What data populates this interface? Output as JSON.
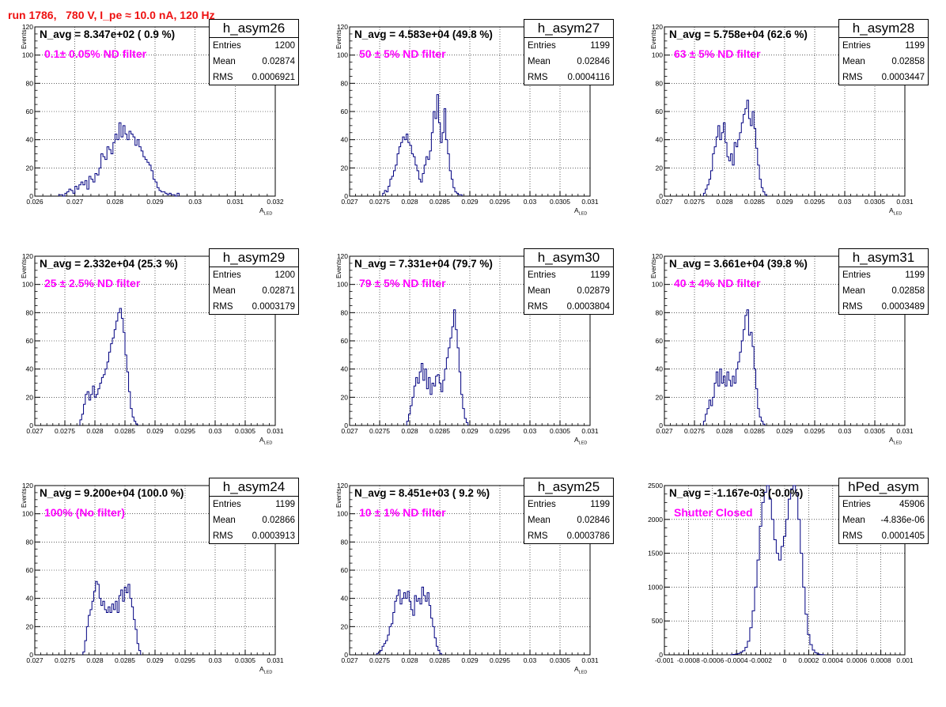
{
  "run_title": "run 1786,   780 V, I_pe ≈ 10.0 nA, 120 Hz",
  "colors": {
    "title": "#ee1111",
    "filter_label": "#ff00ff",
    "histogram_line": "#000080"
  },
  "chart_data": [
    {
      "type": "histogram",
      "hist_name": "h_asym26",
      "n_avg_label": "N_avg = 8.347e+02 ( 0.9 %)",
      "filter_label": "0.1± 0.05% ND filter",
      "stats": {
        "Entries": "1200",
        "Mean": "0.02874",
        "RMS": "0.0006921"
      },
      "xlabel": "A",
      "xlabel_sub": "LED",
      "ylabel": "Events",
      "xlim": [
        0.026,
        0.032
      ],
      "ylim": [
        0,
        120
      ],
      "xticks": [
        "0.026",
        "0.027",
        "0.028",
        "0.029",
        "0.03",
        "0.031",
        "0.032"
      ],
      "yticks": [
        "0",
        "20",
        "40",
        "60",
        "80",
        "100",
        "120"
      ],
      "grid": true,
      "bins_start": 0.0266,
      "bin_width": 5e-05,
      "values": [
        1,
        1,
        0,
        2,
        3,
        5,
        4,
        2,
        7,
        5,
        8,
        10,
        8,
        11,
        5,
        14,
        12,
        10,
        16,
        15,
        20,
        30,
        28,
        26,
        35,
        33,
        30,
        38,
        44,
        40,
        52,
        42,
        50,
        44,
        40,
        46,
        44,
        42,
        36,
        40,
        35,
        32,
        28,
        26,
        24,
        22,
        18,
        12,
        10,
        6,
        4,
        3,
        3,
        2,
        1,
        2,
        1,
        1,
        0,
        2
      ]
    },
    {
      "type": "histogram",
      "hist_name": "h_asym27",
      "n_avg_label": "N_avg = 4.583e+04 (49.8 %)",
      "filter_label": "50 ± 5% ND filter",
      "stats": {
        "Entries": "1199",
        "Mean": "0.02846",
        "RMS": "0.0004116"
      },
      "xlabel": "A",
      "xlabel_sub": "LED",
      "ylabel": "Events",
      "xlim": [
        0.027,
        0.031
      ],
      "ylim": [
        0,
        120
      ],
      "xticks": [
        "0.027",
        "0.0275",
        "0.028",
        "0.0285",
        "0.029",
        "0.0295",
        "0.03",
        "0.0305",
        "0.031"
      ],
      "yticks": [
        "0",
        "20",
        "40",
        "60",
        "80",
        "100",
        "120"
      ],
      "grid": true,
      "bins_start": 0.02755,
      "bin_width": 3e-05,
      "values": [
        2,
        4,
        3,
        7,
        12,
        14,
        18,
        22,
        30,
        35,
        38,
        42,
        40,
        44,
        38,
        36,
        30,
        28,
        22,
        18,
        12,
        10,
        16,
        22,
        28,
        26,
        32,
        45,
        60,
        55,
        72,
        52,
        38,
        45,
        62,
        40,
        30,
        18,
        12,
        6,
        3,
        2,
        1,
        1
      ]
    },
    {
      "type": "histogram",
      "hist_name": "h_asym28",
      "n_avg_label": "N_avg = 5.758e+04 (62.6 %)",
      "filter_label": "63 ± 5% ND filter",
      "stats": {
        "Entries": "1199",
        "Mean": "0.02858",
        "RMS": "0.0003447"
      },
      "xlabel": "A",
      "xlabel_sub": "LED",
      "ylabel": "Events",
      "xlim": [
        0.027,
        0.031
      ],
      "ylim": [
        0,
        120
      ],
      "xticks": [
        "0.027",
        "0.0275",
        "0.028",
        "0.0285",
        "0.029",
        "0.0295",
        "0.03",
        "0.0305",
        "0.031"
      ],
      "yticks": [
        "0",
        "20",
        "40",
        "60",
        "80",
        "100",
        "120"
      ],
      "grid": true,
      "bins_start": 0.02765,
      "bin_width": 3e-05,
      "values": [
        2,
        5,
        8,
        12,
        18,
        30,
        35,
        42,
        50,
        40,
        45,
        52,
        38,
        28,
        25,
        30,
        22,
        38,
        35,
        40,
        45,
        52,
        58,
        62,
        68,
        55,
        50,
        60,
        48,
        34,
        22,
        12,
        6,
        3,
        1
      ]
    },
    {
      "type": "histogram",
      "hist_name": "h_asym29",
      "n_avg_label": "N_avg = 2.332e+04 (25.3 %)",
      "filter_label": "25 ± 2.5% ND filter",
      "stats": {
        "Entries": "1200",
        "Mean": "0.02871",
        "RMS": "0.0003179"
      },
      "xlabel": "A",
      "xlabel_sub": "LED",
      "ylabel": "Events",
      "xlim": [
        0.027,
        0.031
      ],
      "ylim": [
        0,
        120
      ],
      "xticks": [
        "0.027",
        "0.0275",
        "0.028",
        "0.0285",
        "0.029",
        "0.0295",
        "0.03",
        "0.0305",
        "0.031"
      ],
      "yticks": [
        "0",
        "20",
        "40",
        "60",
        "80",
        "100",
        "120"
      ],
      "grid": true,
      "bins_start": 0.02775,
      "bin_width": 3e-05,
      "values": [
        4,
        8,
        15,
        22,
        24,
        18,
        22,
        28,
        20,
        22,
        26,
        30,
        34,
        36,
        40,
        45,
        52,
        58,
        62,
        68,
        74,
        80,
        83,
        76,
        66,
        50,
        38,
        24,
        12,
        6,
        3,
        1
      ]
    },
    {
      "type": "histogram",
      "hist_name": "h_asym30",
      "n_avg_label": "N_avg = 7.331e+04 (79.7 %)",
      "filter_label": "79 ± 5% ND filter",
      "stats": {
        "Entries": "1199",
        "Mean": "0.02879",
        "RMS": "0.0003804"
      },
      "xlabel": "A",
      "xlabel_sub": "LED",
      "ylabel": "Events",
      "xlim": [
        0.027,
        0.031
      ],
      "ylim": [
        0,
        120
      ],
      "xticks": [
        "0.027",
        "0.0275",
        "0.028",
        "0.0285",
        "0.029",
        "0.0295",
        "0.03",
        "0.0305",
        "0.031"
      ],
      "yticks": [
        "0",
        "20",
        "40",
        "60",
        "80",
        "100",
        "120"
      ],
      "grid": true,
      "bins_start": 0.02795,
      "bin_width": 3e-05,
      "values": [
        3,
        8,
        14,
        20,
        28,
        34,
        30,
        38,
        44,
        32,
        40,
        26,
        34,
        22,
        30,
        28,
        35,
        36,
        30,
        24,
        32,
        40,
        48,
        55,
        62,
        70,
        82,
        68,
        55,
        38,
        22,
        12,
        5,
        2
      ]
    },
    {
      "type": "histogram",
      "hist_name": "h_asym31",
      "n_avg_label": "N_avg = 3.661e+04 (39.8 %)",
      "filter_label": "40 ± 4% ND filter",
      "stats": {
        "Entries": "1199",
        "Mean": "0.02858",
        "RMS": "0.0003489"
      },
      "xlabel": "A",
      "xlabel_sub": "LED",
      "ylabel": "Events",
      "xlim": [
        0.027,
        0.031
      ],
      "ylim": [
        0,
        120
      ],
      "xticks": [
        "0.027",
        "0.0275",
        "0.028",
        "0.0285",
        "0.029",
        "0.0295",
        "0.03",
        "0.0305",
        "0.031"
      ],
      "yticks": [
        "0",
        "20",
        "40",
        "60",
        "80",
        "100",
        "120"
      ],
      "grid": true,
      "bins_start": 0.02765,
      "bin_width": 3e-05,
      "values": [
        3,
        8,
        12,
        18,
        14,
        20,
        30,
        38,
        28,
        40,
        30,
        35,
        28,
        38,
        32,
        28,
        35,
        30,
        40,
        45,
        52,
        60,
        68,
        78,
        82,
        64,
        66,
        56,
        40,
        26,
        12,
        6,
        3,
        1
      ]
    },
    {
      "type": "histogram",
      "hist_name": "h_asym24",
      "n_avg_label": "N_avg = 9.200e+04 (100.0 %)",
      "filter_label": "100% (No filter)",
      "stats": {
        "Entries": "1199",
        "Mean": "0.02866",
        "RMS": "0.0003913"
      },
      "xlabel": "A",
      "xlabel_sub": "LED",
      "ylabel": "Events",
      "xlim": [
        0.027,
        0.031
      ],
      "ylim": [
        0,
        120
      ],
      "xticks": [
        "0.027",
        "0.0275",
        "0.028",
        "0.0285",
        "0.029",
        "0.0295",
        "0.03",
        "0.0305",
        "0.031"
      ],
      "yticks": [
        "0",
        "20",
        "40",
        "60",
        "80",
        "100",
        "120"
      ],
      "grid": true,
      "bins_start": 0.0278,
      "bin_width": 3e-05,
      "values": [
        2,
        10,
        20,
        28,
        32,
        38,
        45,
        52,
        50,
        40,
        35,
        38,
        32,
        30,
        34,
        30,
        36,
        32,
        38,
        30,
        42,
        46,
        38,
        48,
        44,
        50,
        40,
        34,
        25,
        18,
        8,
        3
      ]
    },
    {
      "type": "histogram",
      "hist_name": "h_asym25",
      "n_avg_label": "N_avg = 8.451e+03 ( 9.2 %)",
      "filter_label": "10 ± 1% ND filter",
      "stats": {
        "Entries": "1199",
        "Mean": "0.02846",
        "RMS": "0.0003786"
      },
      "xlabel": "A",
      "xlabel_sub": "LED",
      "ylabel": "Events",
      "xlim": [
        0.027,
        0.031
      ],
      "ylim": [
        0,
        120
      ],
      "xticks": [
        "0.027",
        "0.0275",
        "0.028",
        "0.0285",
        "0.029",
        "0.0295",
        "0.03",
        "0.0305",
        "0.031"
      ],
      "yticks": [
        "0",
        "20",
        "40",
        "60",
        "80",
        "100",
        "120"
      ],
      "grid": true,
      "bins_start": 0.02745,
      "bin_width": 3e-05,
      "values": [
        1,
        2,
        3,
        6,
        8,
        10,
        14,
        20,
        22,
        30,
        38,
        42,
        46,
        36,
        40,
        44,
        40,
        45,
        38,
        32,
        28,
        42,
        38,
        40,
        36,
        48,
        42,
        38,
        44,
        35,
        26,
        20,
        12,
        6,
        3,
        1
      ]
    },
    {
      "type": "histogram",
      "hist_name": "hPed_asym",
      "n_avg_label": "N_avg = -1.167e-03 (-0.0%)",
      "filter_label": "Shutter Closed",
      "stats": {
        "Entries": "45906",
        "Mean": "-4.836e-06",
        "RMS": "0.0001405"
      },
      "xlabel": "",
      "xlabel_sub": "",
      "ylabel": "",
      "xlim": [
        -0.001,
        0.001
      ],
      "ylim": [
        0,
        2500
      ],
      "xticks": [
        "-0.001",
        "-0.0008",
        "-0.0006",
        "-0.0004",
        "-0.0002",
        "0",
        "0.0002",
        "0.0004",
        "0.0006",
        "0.0008",
        "0.001"
      ],
      "yticks": [
        "0",
        "500",
        "1000",
        "1500",
        "2000",
        "2500"
      ],
      "grid": true,
      "bins_start": -0.00045,
      "bin_width": 2e-05,
      "values": [
        2,
        6,
        12,
        20,
        40,
        60,
        110,
        200,
        400,
        650,
        1000,
        1400,
        1900,
        2250,
        2400,
        2500,
        2300,
        2000,
        1700,
        1500,
        1400,
        1600,
        1750,
        2000,
        2300,
        2450,
        2500,
        2400,
        2000,
        1500,
        1000,
        600,
        300,
        150,
        70,
        30,
        12,
        5,
        2
      ]
    }
  ]
}
